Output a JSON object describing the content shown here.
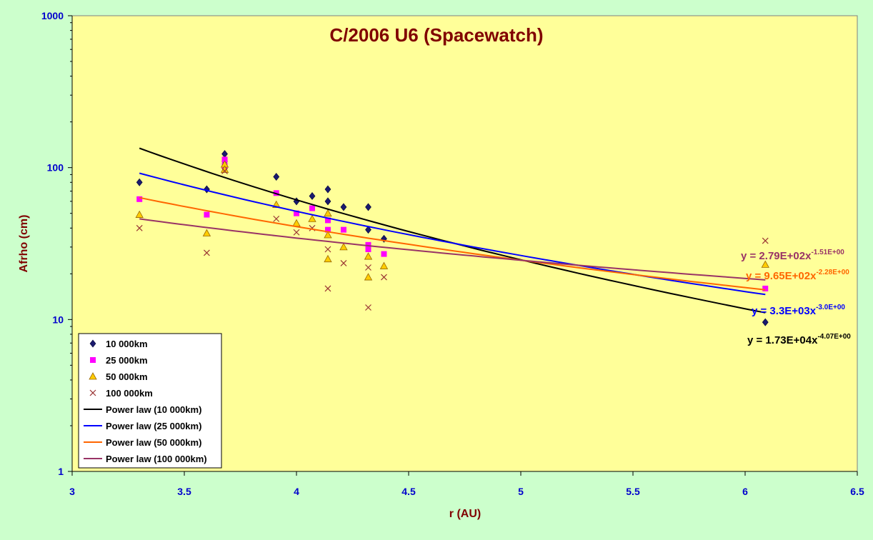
{
  "colors": {
    "background": "#ccffcc",
    "plot_area": "#ffff99",
    "title": "#800000",
    "axis_tick_labels": "#0000cc",
    "axis_title": "#800000"
  },
  "chart_data": {
    "type": "scatter",
    "title": "C/2006 U6 (Spacewatch)",
    "xlabel": "r (AU)",
    "ylabel": "Afrho (cm)",
    "xlim": [
      3,
      6.5
    ],
    "ylim": [
      1,
      1000
    ],
    "yscale": "log",
    "grid": false,
    "legend_position": "bottom-left",
    "x_ticks": [
      "3",
      "3.5",
      "4",
      "4.5",
      "5",
      "5.5",
      "6",
      "6.5"
    ],
    "y_ticks": [
      "1",
      "10",
      "100",
      "1000"
    ],
    "series": [
      {
        "name": "10 000km",
        "marker": "diamond",
        "color": "#1a1a6e",
        "points": [
          [
            3.3,
            80
          ],
          [
            3.6,
            72
          ],
          [
            3.68,
            123
          ],
          [
            3.68,
            110
          ],
          [
            3.91,
            87
          ],
          [
            4.0,
            60
          ],
          [
            4.07,
            65
          ],
          [
            4.14,
            72
          ],
          [
            4.14,
            60
          ],
          [
            4.21,
            55
          ],
          [
            4.32,
            55
          ],
          [
            4.32,
            39
          ],
          [
            4.39,
            34
          ],
          [
            6.09,
            9.6
          ]
        ]
      },
      {
        "name": "25 000km",
        "marker": "square",
        "color": "#ff00ff",
        "points": [
          [
            3.3,
            62
          ],
          [
            3.6,
            49
          ],
          [
            3.68,
            113
          ],
          [
            3.68,
            103
          ],
          [
            3.91,
            68
          ],
          [
            4.0,
            50
          ],
          [
            4.07,
            54
          ],
          [
            4.14,
            45
          ],
          [
            4.14,
            39
          ],
          [
            4.21,
            39
          ],
          [
            4.32,
            31
          ],
          [
            4.32,
            29
          ],
          [
            4.39,
            27
          ],
          [
            6.09,
            16
          ]
        ]
      },
      {
        "name": "50 000km",
        "marker": "triangle",
        "color": "#ffcc00",
        "points": [
          [
            3.3,
            49
          ],
          [
            3.6,
            37
          ],
          [
            3.68,
            105
          ],
          [
            3.68,
            97
          ],
          [
            3.91,
            57
          ],
          [
            4.0,
            43
          ],
          [
            4.07,
            46
          ],
          [
            4.14,
            50
          ],
          [
            4.14,
            36
          ],
          [
            4.14,
            25
          ],
          [
            4.21,
            30
          ],
          [
            4.32,
            26
          ],
          [
            4.32,
            19
          ],
          [
            4.39,
            22.5
          ],
          [
            6.09,
            23
          ]
        ]
      },
      {
        "name": "100 000km",
        "marker": "x",
        "color": "#993333",
        "points": [
          [
            3.3,
            40
          ],
          [
            3.6,
            27.5
          ],
          [
            3.68,
            95
          ],
          [
            3.91,
            46
          ],
          [
            4.0,
            37.5
          ],
          [
            4.07,
            40
          ],
          [
            4.14,
            29
          ],
          [
            4.14,
            16
          ],
          [
            4.21,
            23.5
          ],
          [
            4.32,
            22
          ],
          [
            4.32,
            12
          ],
          [
            4.39,
            19
          ],
          [
            6.09,
            33
          ]
        ]
      }
    ],
    "fits": [
      {
        "name": "Power law (10 000km)",
        "color": "#000000",
        "coef": 17300,
        "exp": -4.07,
        "equation": "y = 1.73E+04x",
        "exponent_label": "-4.07E+00",
        "x_range": [
          3.3,
          6.09
        ]
      },
      {
        "name": "Power law (25 000km)",
        "color": "#0000ff",
        "coef": 3300,
        "exp": -3.0,
        "equation": "y = 3.3E+03x",
        "exponent_label": "-3.0E+00",
        "x_range": [
          3.3,
          6.09
        ]
      },
      {
        "name": "Power law (50 000km)",
        "color": "#ff6600",
        "coef": 965,
        "exp": -2.28,
        "equation": "y = 9.65E+02x",
        "exponent_label": "-2.28E+00",
        "x_range": [
          3.3,
          6.09
        ]
      },
      {
        "name": "Power law (100 000km)",
        "color": "#993366",
        "coef": 279,
        "exp": -1.51,
        "equation": "y = 2.79E+02x",
        "exponent_label": "-1.51E+00",
        "x_range": [
          3.3,
          6.09
        ]
      }
    ]
  }
}
